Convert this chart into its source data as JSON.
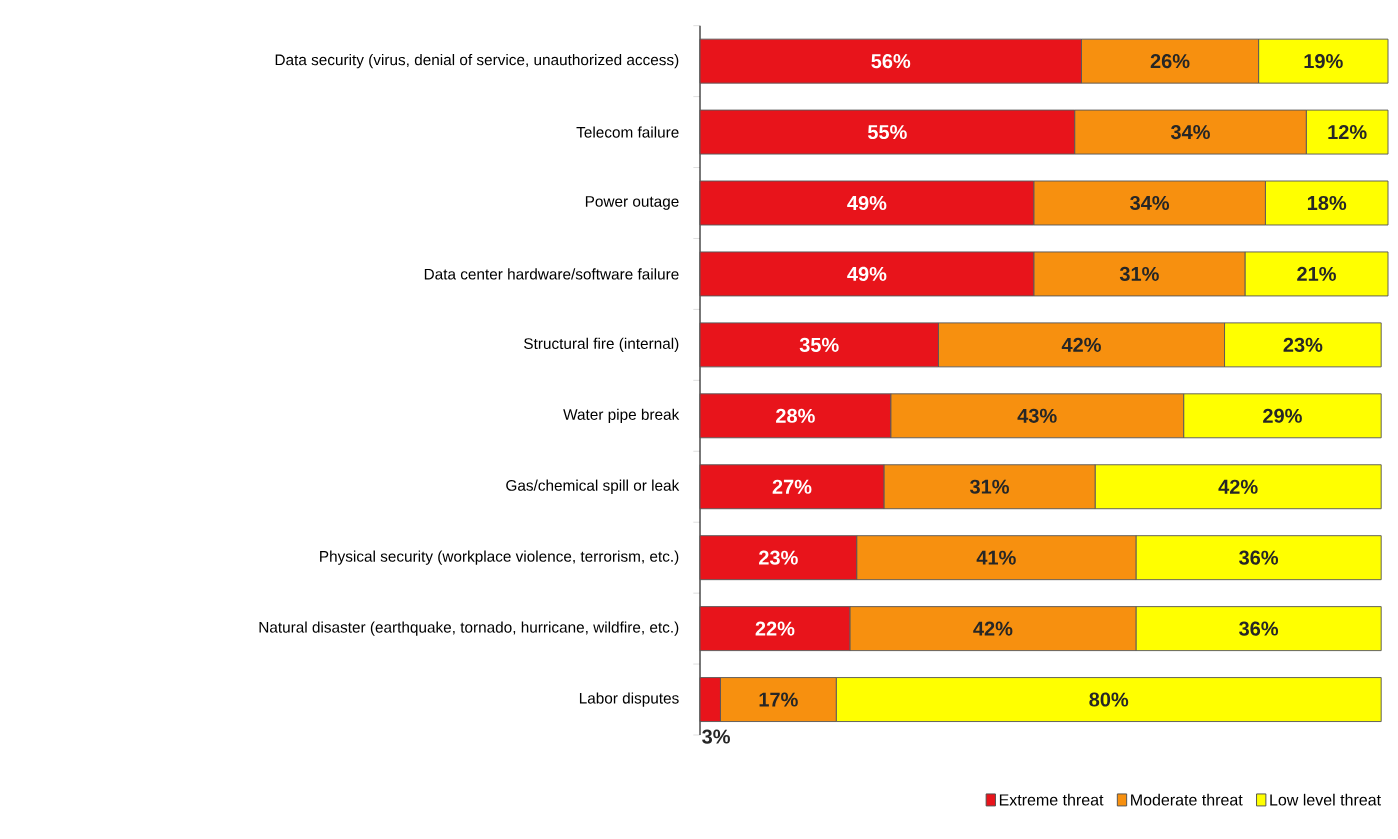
{
  "chart_data": {
    "type": "bar",
    "orientation": "horizontal",
    "stacked": true,
    "legend": "bottom right",
    "categories": [
      "Data security (virus, denial of service, unauthorized access)",
      "Telecom failure",
      "Power outage",
      "Data center hardware/software failure",
      "Structural fire (internal)",
      "Water pipe break",
      "Gas/chemical spill or leak",
      "Physical security (workplace violence, terrorism, etc.)",
      "Natural disaster (earthquake, tornado, hurricane, wildfire, etc.)",
      "Labor disputes"
    ],
    "series": [
      {
        "name": "Extreme threat",
        "color": "#e8141b",
        "values": [
          56,
          55,
          49,
          49,
          35,
          28,
          27,
          23,
          22,
          3
        ],
        "value_labels": [
          "56%",
          "55%",
          "49%",
          "49%",
          "35%",
          "28%",
          "27%",
          "23%",
          "22%",
          "3%"
        ]
      },
      {
        "name": "Moderate threat",
        "color": "#f7900f",
        "values": [
          26,
          34,
          34,
          31,
          42,
          43,
          31,
          41,
          42,
          17
        ],
        "value_labels": [
          "26%",
          "34%",
          "34%",
          "31%",
          "42%",
          "43%",
          "31%",
          "41%",
          "42%",
          "17%"
        ]
      },
      {
        "name": "Low level threat",
        "color": "#ffff00",
        "values": [
          19,
          12,
          18,
          21,
          23,
          29,
          42,
          36,
          36,
          80
        ],
        "value_labels": [
          "19%",
          "12%",
          "18%",
          "21%",
          "23%",
          "29%",
          "42%",
          "36%",
          "36%",
          "80%"
        ]
      }
    ]
  }
}
